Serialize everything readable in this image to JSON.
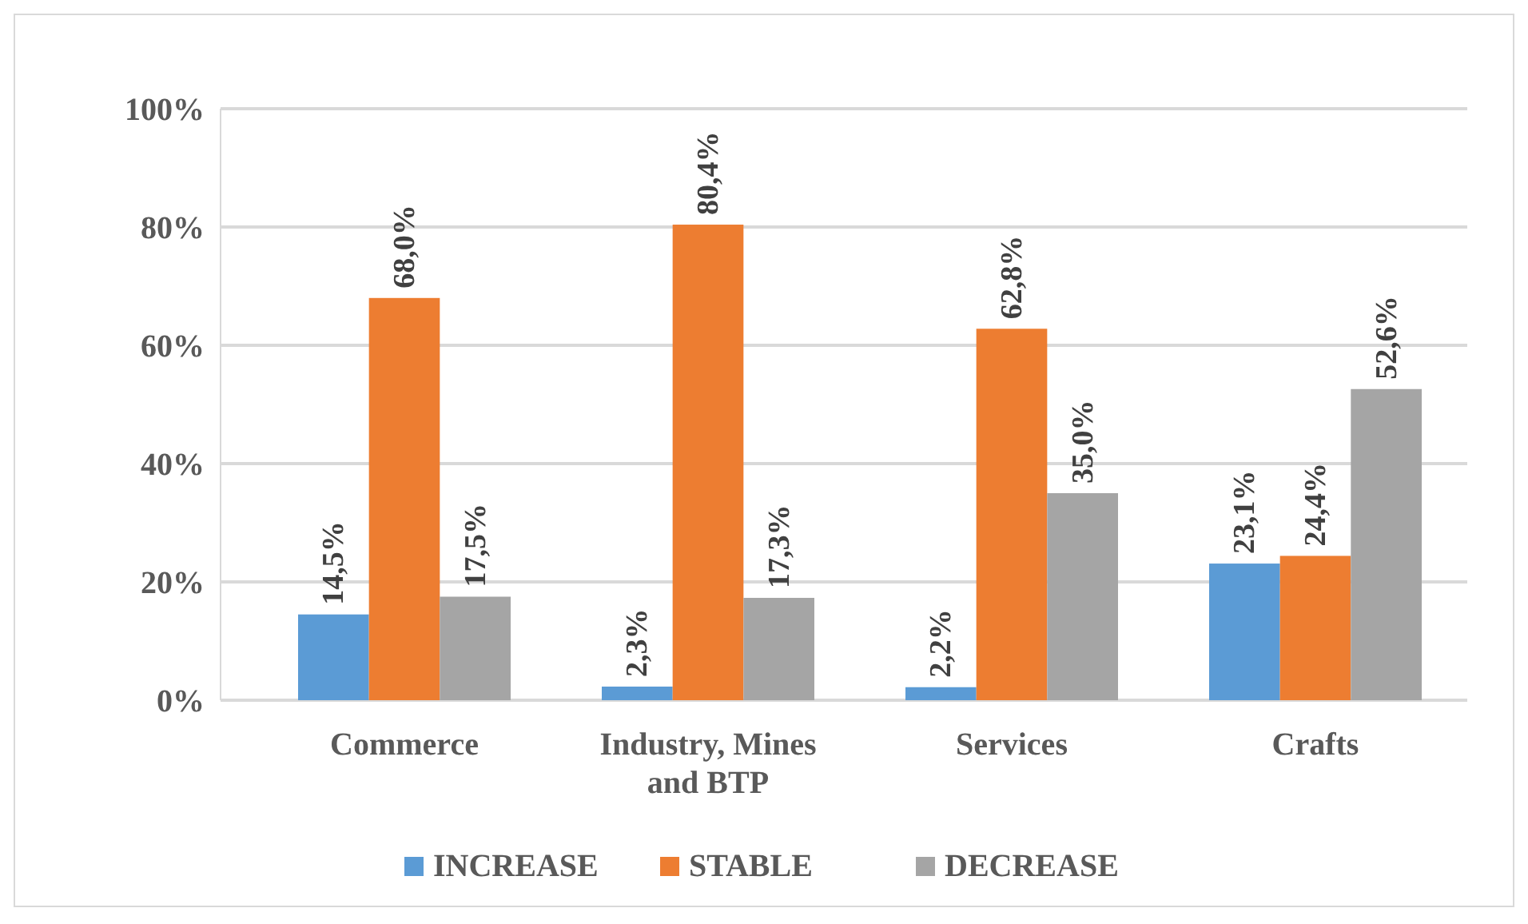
{
  "chart_data": {
    "type": "bar",
    "categories": [
      "Commerce",
      "Industry, Mines and BTP",
      "Services",
      "Crafts"
    ],
    "series": [
      {
        "name": "INCREASE",
        "color": "#5b9bd5",
        "values": [
          14.5,
          2.3,
          2.2,
          23.1
        ],
        "value_labels": [
          "14,5%",
          "2,3%",
          "2,2%",
          "23,1%"
        ]
      },
      {
        "name": "STABLE",
        "color": "#ed7d31",
        "values": [
          68.0,
          80.4,
          62.8,
          24.4
        ],
        "value_labels": [
          "68,0%",
          "80,4%",
          "62,8%",
          "24,4%"
        ]
      },
      {
        "name": "DECREASE",
        "color": "#a5a5a5",
        "values": [
          17.5,
          17.3,
          35.0,
          52.6
        ],
        "value_labels": [
          "17,5%",
          "17,3%",
          "35,0%",
          "52,6%"
        ]
      }
    ],
    "ylim": [
      0,
      100
    ],
    "yticks": [
      {
        "value": 0,
        "label": "0%"
      },
      {
        "value": 20,
        "label": "20%"
      },
      {
        "value": 40,
        "label": "40%"
      },
      {
        "value": 60,
        "label": "60%"
      },
      {
        "value": 80,
        "label": "80%"
      },
      {
        "value": 100,
        "label": "100%"
      }
    ],
    "grid": "y",
    "legend": "bottom"
  }
}
